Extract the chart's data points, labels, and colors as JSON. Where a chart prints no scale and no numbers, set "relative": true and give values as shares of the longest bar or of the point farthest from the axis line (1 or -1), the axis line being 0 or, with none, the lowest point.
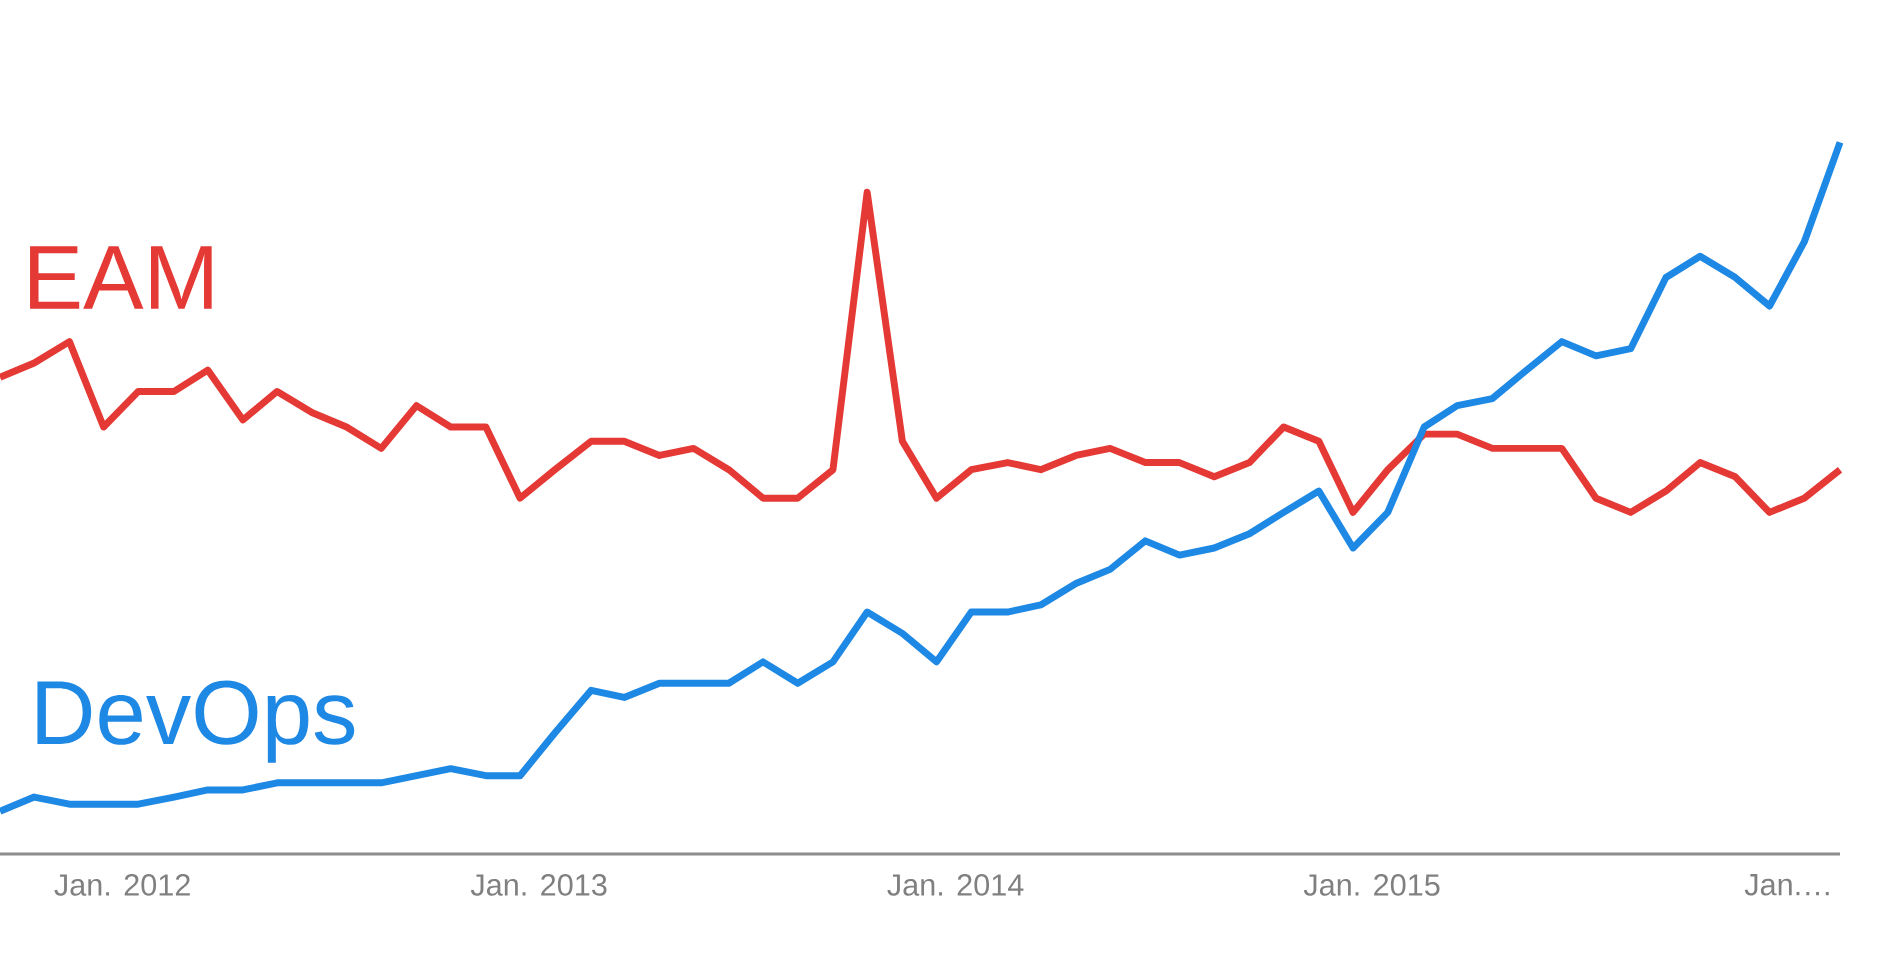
{
  "chart_data": {
    "type": "line",
    "relative": true,
    "x": [
      "2011-09-15",
      "2011-10-15",
      "2011-11-15",
      "2011-12-15",
      "2012-01-15",
      "2012-02-15",
      "2012-03-15",
      "2012-04-15",
      "2012-05-15",
      "2012-06-15",
      "2012-07-15",
      "2012-08-15",
      "2012-09-15",
      "2012-10-15",
      "2012-11-15",
      "2012-12-15",
      "2013-01-15",
      "2013-02-15",
      "2013-03-15",
      "2013-04-15",
      "2013-05-15",
      "2013-06-15",
      "2013-07-15",
      "2013-08-15",
      "2013-09-15",
      "2013-10-15",
      "2013-11-15",
      "2013-12-15",
      "2014-01-15",
      "2014-02-15",
      "2014-03-15",
      "2014-04-15",
      "2014-05-15",
      "2014-06-15",
      "2014-07-15",
      "2014-08-15",
      "2014-09-15",
      "2014-10-15",
      "2014-11-15",
      "2014-12-15",
      "2015-01-15",
      "2015-02-15",
      "2015-03-15",
      "2015-04-15",
      "2015-05-15",
      "2015-06-15",
      "2015-07-15",
      "2015-08-15",
      "2015-09-15",
      "2015-10-15",
      "2015-11-15",
      "2015-12-15",
      "2016-01-15",
      "2016-02-15"
    ],
    "xlim": [
      "2011-09-15",
      "2016-02-15"
    ],
    "xticks": [
      {
        "value": "2012-01-01",
        "label": "Jan. 2012"
      },
      {
        "value": "2013-01-01",
        "label": "Jan. 2013"
      },
      {
        "value": "2014-01-01",
        "label": "Jan. 2014"
      },
      {
        "value": "2015-01-01",
        "label": "Jan. 2015"
      },
      {
        "value": "2016-01-01",
        "label": "Jan.…"
      }
    ],
    "series": [
      {
        "name": "EAM",
        "color": "#e53935",
        "values": [
          0.67,
          0.69,
          0.72,
          0.6,
          0.65,
          0.65,
          0.68,
          0.61,
          0.65,
          0.62,
          0.6,
          0.57,
          0.63,
          0.6,
          0.6,
          0.5,
          0.54,
          0.58,
          0.58,
          0.56,
          0.57,
          0.54,
          0.5,
          0.5,
          0.54,
          0.93,
          0.58,
          0.5,
          0.54,
          0.55,
          0.54,
          0.56,
          0.57,
          0.55,
          0.55,
          0.53,
          0.55,
          0.6,
          0.58,
          0.48,
          0.54,
          0.59,
          0.59,
          0.57,
          0.57,
          0.57,
          0.5,
          0.48,
          0.51,
          0.55,
          0.53,
          0.48,
          0.5,
          0.54
        ]
      },
      {
        "name": "DevOps",
        "color": "#1e88e5",
        "values": [
          0.06,
          0.08,
          0.07,
          0.07,
          0.07,
          0.08,
          0.09,
          0.09,
          0.1,
          0.1,
          0.1,
          0.1,
          0.11,
          0.12,
          0.11,
          0.11,
          0.17,
          0.23,
          0.22,
          0.24,
          0.24,
          0.24,
          0.27,
          0.24,
          0.27,
          0.34,
          0.31,
          0.27,
          0.34,
          0.34,
          0.35,
          0.38,
          0.4,
          0.44,
          0.42,
          0.43,
          0.45,
          0.48,
          0.51,
          0.43,
          0.48,
          0.6,
          0.63,
          0.64,
          0.68,
          0.72,
          0.7,
          0.71,
          0.81,
          0.84,
          0.81,
          0.77,
          0.86,
          1.0
        ]
      }
    ]
  }
}
